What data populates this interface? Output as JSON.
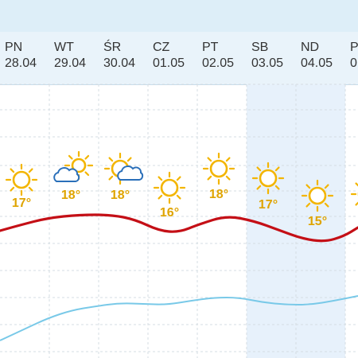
{
  "days": [
    {
      "name": "PN",
      "date": "28.04",
      "temp": "17°",
      "icon": "sun-icon",
      "x": 0,
      "line_temp": 17,
      "hi": true
    },
    {
      "name": "WT",
      "date": "29.04",
      "temp": "18°",
      "icon": "cloud-sun-icon",
      "x": 0,
      "line_temp": 18,
      "hi": false
    },
    {
      "name": "ŚR",
      "date": "30.04",
      "temp": "18°",
      "icon": "sun-cloud-icon",
      "x": 0,
      "line_temp": 18,
      "hi": false
    },
    {
      "name": "CZ",
      "date": "01.05",
      "temp": "16°",
      "icon": "sun-icon",
      "x": 0,
      "line_temp": 16,
      "hi": false
    },
    {
      "name": "PT",
      "date": "02.05",
      "temp": "18°",
      "icon": "sun-icon",
      "x": 0,
      "line_temp": 18,
      "hi": false
    },
    {
      "name": "SB",
      "date": "03.05",
      "temp": "17°",
      "icon": "sun-icon",
      "x": 0,
      "line_temp": 17,
      "hi": true
    },
    {
      "name": "ND",
      "date": "04.05",
      "temp": "15°",
      "icon": "sun-icon",
      "x": 0,
      "line_temp": 15,
      "hi": true
    },
    {
      "name": "P",
      "date": "0",
      "temp": "",
      "icon": "sun-icon",
      "x": 0,
      "line_temp": 16,
      "hi": false
    }
  ],
  "colors": {
    "weekend_highlight": "#e7f1fb",
    "grid": "#d6dde3",
    "temp_line": "#c40f16",
    "secondary_line": "#79c9e8",
    "temp_text": "#dfa400",
    "sun": "#f3b500",
    "cloud": "#2a6fb9"
  }
}
